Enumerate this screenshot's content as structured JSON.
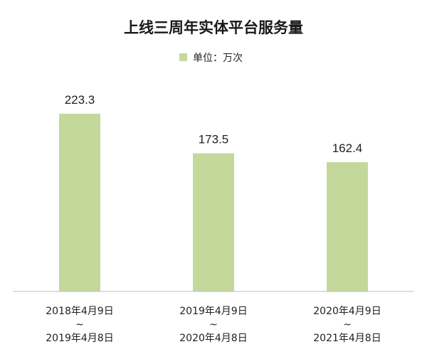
{
  "chart_data": {
    "type": "bar",
    "title": "上线三周年实体平台服务量",
    "legend": {
      "label": "单位：万次",
      "position": "top-center"
    },
    "categories": [
      [
        "2018年4月9日",
        "~",
        "2019年4月8日"
      ],
      [
        "2019年4月9日",
        "~",
        "2020年4月8日"
      ],
      [
        "2020年4月9日",
        "~",
        "2021年4月8日"
      ]
    ],
    "values": [
      223.3,
      173.5,
      162.4
    ],
    "value_labels": [
      "223.3",
      "173.5",
      "162.4"
    ],
    "ylim": [
      0,
      250
    ],
    "grid": false,
    "colors": {
      "bar": "#c5d89c",
      "axis": "#bfbfbf"
    }
  }
}
